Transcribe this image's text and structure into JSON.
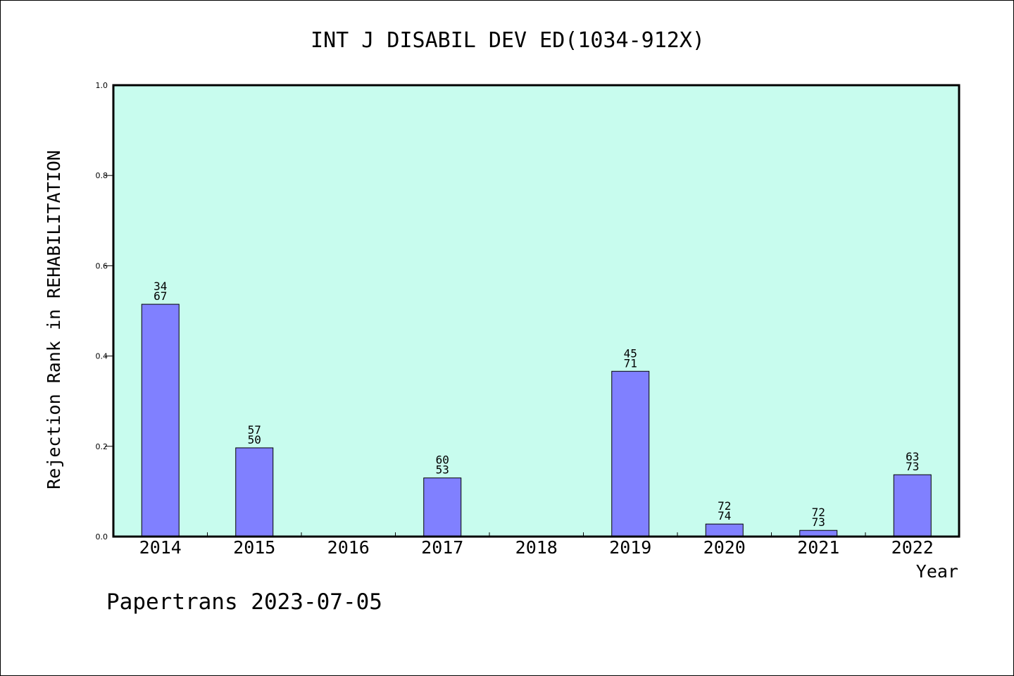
{
  "chart_data": {
    "type": "bar",
    "title": "INT J DISABIL DEV ED(1034-912X)",
    "xlabel": "Year",
    "ylabel": "Rejection Rank in REHABILITATION",
    "footer": "Papertrans 2023-07-05",
    "categories": [
      "2014",
      "2015",
      "2016",
      "2017",
      "2018",
      "2019",
      "2020",
      "2021",
      "2022"
    ],
    "values": [
      0.5147,
      0.1966,
      null,
      0.1299,
      null,
      0.3662,
      0.0278,
      0.0137,
      0.137
    ],
    "labels_top": [
      "34",
      "57",
      "",
      "60",
      "",
      "45",
      "72",
      "72",
      "63"
    ],
    "labels_bottom": [
      "67",
      "50",
      "",
      "53",
      "",
      "71",
      "74",
      "73",
      "73"
    ],
    "ylim": [
      0,
      1.0
    ],
    "yticks": [
      "0.0",
      "0.2",
      "0.4",
      "0.6",
      "0.8",
      "1.0"
    ],
    "grid": false,
    "colors": {
      "plot_background": "#c8fcee",
      "bar_fill": "#8080ff",
      "bar_stroke": "#000000"
    }
  }
}
